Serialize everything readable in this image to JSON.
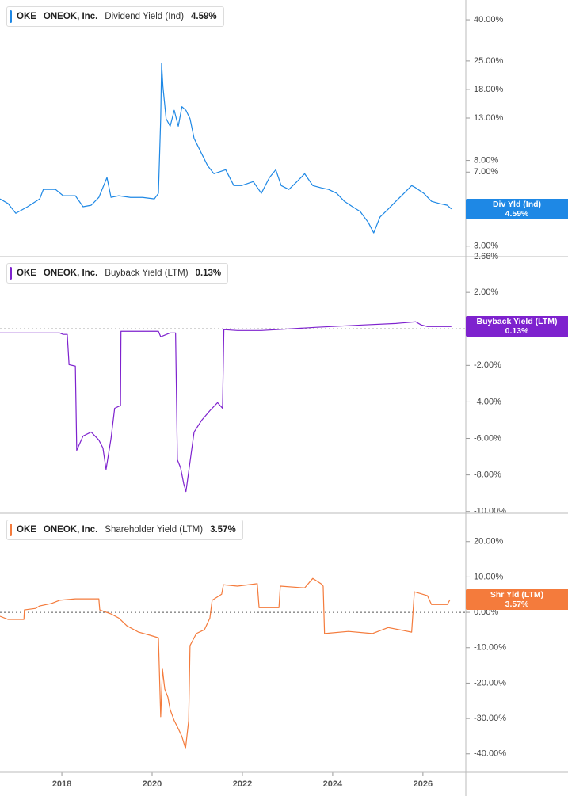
{
  "chart_data": [
    {
      "type": "line",
      "ticker": "OKE",
      "company": "ONEOK, Inc.",
      "badge": "Div Yld (Ind)",
      "current": {
        "value": 4.59,
        "label": "4.59%"
      },
      "log": true,
      "xlim": [
        2016.63,
        2026.95
      ],
      "ylim": [
        2.66,
        50.2
      ],
      "yticks": [
        {
          "value": 40,
          "label": "40.00%"
        },
        {
          "value": 25,
          "label": "25.00%"
        },
        {
          "value": 18,
          "label": "18.00%"
        },
        {
          "value": 13,
          "label": "13.00%"
        },
        {
          "value": 8,
          "label": "8.00%"
        },
        {
          "value": 7,
          "label": "7.00%"
        },
        {
          "value": 3,
          "label": "3.00%"
        },
        {
          "value": 2.66,
          "label": "2.66%"
        }
      ],
      "x": [
        2016.63,
        2016.81,
        2016.98,
        2017.24,
        2017.51,
        2017.59,
        2017.86,
        2018.03,
        2018.3,
        2018.47,
        2018.65,
        2018.82,
        2019.0,
        2019.09,
        2019.26,
        2019.52,
        2019.79,
        2020.05,
        2020.14,
        2020.19,
        2020.21,
        2020.24,
        2020.31,
        2020.4,
        2020.49,
        2020.58,
        2020.66,
        2020.75,
        2020.84,
        2020.93,
        2021.1,
        2021.23,
        2021.37,
        2021.63,
        2021.81,
        2021.98,
        2022.24,
        2022.42,
        2022.6,
        2022.74,
        2022.86,
        2023.03,
        2023.21,
        2023.38,
        2023.56,
        2023.74,
        2023.91,
        2024.09,
        2024.26,
        2024.44,
        2024.61,
        2024.79,
        2024.91,
        2025.05,
        2025.23,
        2025.4,
        2025.58,
        2025.75,
        2025.84,
        2026.02,
        2026.19,
        2026.37,
        2026.54,
        2026.63
      ],
      "series": [
        {
          "name": "Dividend Yield (Ind)",
          "color": "#1e88e5",
          "values": [
            5.15,
            4.88,
            4.37,
            4.71,
            5.15,
            5.74,
            5.74,
            5.34,
            5.34,
            4.71,
            4.79,
            5.24,
            6.58,
            5.24,
            5.34,
            5.24,
            5.24,
            5.15,
            5.49,
            12.9,
            24.3,
            18.6,
            12.9,
            11.83,
            14.2,
            11.83,
            14.8,
            14.2,
            12.9,
            10.3,
            8.62,
            7.53,
            6.87,
            7.19,
            6.0,
            6.0,
            6.28,
            5.49,
            6.58,
            7.19,
            6.0,
            5.74,
            6.28,
            6.87,
            6.0,
            5.85,
            5.74,
            5.49,
            5.01,
            4.71,
            4.46,
            3.93,
            3.49,
            4.19,
            4.58,
            5.01,
            5.49,
            6.0,
            5.85,
            5.49,
            5.01,
            4.88,
            4.79,
            4.59
          ]
        }
      ]
    },
    {
      "type": "line",
      "ticker": "OKE",
      "company": "ONEOK, Inc.",
      "badge": "Buyback Yield (LTM)",
      "current": {
        "value": 0.13,
        "label": "0.13%"
      },
      "reference_line": 0,
      "xlim": [
        2016.63,
        2026.95
      ],
      "ylim": [
        -10.1,
        3.96
      ],
      "yticks": [
        {
          "value": 2,
          "label": "2.00%"
        },
        {
          "value": -2,
          "label": "-2.00%"
        },
        {
          "value": -4,
          "label": "-4.00%"
        },
        {
          "value": -6,
          "label": "-6.00%"
        },
        {
          "value": -8,
          "label": "-8.00%"
        },
        {
          "value": -10,
          "label": "-10.00%"
        }
      ],
      "x": [
        2016.63,
        2017.51,
        2017.95,
        2018.03,
        2018.12,
        2018.16,
        2018.3,
        2018.33,
        2018.47,
        2018.65,
        2018.82,
        2018.91,
        2018.98,
        2019.09,
        2019.17,
        2019.3,
        2019.31,
        2019.61,
        2020.14,
        2020.19,
        2020.4,
        2020.52,
        2020.56,
        2020.63,
        2020.7,
        2020.75,
        2020.81,
        2020.93,
        2021.1,
        2021.28,
        2021.45,
        2021.56,
        2021.59,
        2021.89,
        2022.42,
        2023.65,
        2024.7,
        2025.4,
        2025.84,
        2025.96,
        2026.1,
        2026.63
      ],
      "series": [
        {
          "name": "Buyback Yield (LTM)",
          "color": "#7e22ce",
          "values": [
            -0.22,
            -0.22,
            -0.22,
            -0.3,
            -0.3,
            -1.96,
            -2.04,
            -6.65,
            -5.87,
            -5.65,
            -6.09,
            -6.52,
            -7.7,
            -6.0,
            -4.35,
            -4.2,
            -0.13,
            -0.13,
            -0.13,
            -0.43,
            -0.22,
            -0.22,
            -7.17,
            -7.6,
            -8.48,
            -8.91,
            -7.83,
            -5.65,
            -5.0,
            -4.48,
            -4.04,
            -4.35,
            -0.04,
            -0.09,
            -0.09,
            0.09,
            0.22,
            0.3,
            0.39,
            0.22,
            0.13,
            0.13
          ]
        }
      ]
    },
    {
      "type": "line",
      "ticker": "OKE",
      "company": "ONEOK, Inc.",
      "badge": "Shr Yld (LTM)",
      "current": {
        "value": 3.57,
        "label": "3.57%"
      },
      "reference_line": 0,
      "xlim": [
        2016.63,
        2026.95
      ],
      "ylim": [
        -45.2,
        28
      ],
      "yticks": [
        {
          "value": 20,
          "label": "20.00%"
        },
        {
          "value": 10,
          "label": "10.00%"
        },
        {
          "value": 0,
          "label": "0.00%"
        },
        {
          "value": -10,
          "label": "-10.00%"
        },
        {
          "value": -20,
          "label": "-20.00%"
        },
        {
          "value": -30,
          "label": "-30.00%"
        },
        {
          "value": -40,
          "label": "-40.00%"
        }
      ],
      "xticks": [
        2018,
        2020,
        2022,
        2024,
        2026
      ],
      "x": [
        2016.63,
        2016.81,
        2017.16,
        2017.17,
        2017.42,
        2017.51,
        2017.77,
        2017.95,
        2018.3,
        2018.82,
        2018.84,
        2019.09,
        2019.26,
        2019.44,
        2019.7,
        2019.96,
        2020.14,
        2020.19,
        2020.23,
        2020.28,
        2020.35,
        2020.4,
        2020.49,
        2020.58,
        2020.66,
        2020.74,
        2020.81,
        2020.84,
        2020.98,
        2021.16,
        2021.28,
        2021.33,
        2021.54,
        2021.58,
        2021.89,
        2022.33,
        2022.37,
        2022.81,
        2022.84,
        2023.38,
        2023.56,
        2023.74,
        2023.79,
        2023.82,
        2024.35,
        2024.88,
        2025.23,
        2025.75,
        2025.81,
        2026.1,
        2026.19,
        2026.54,
        2026.6
      ],
      "series": [
        {
          "name": "Shareholder Yield (LTM)",
          "color": "#f47b3c",
          "values": [
            -1.1,
            -2.0,
            -2.0,
            0.67,
            1.1,
            1.8,
            2.5,
            3.4,
            3.8,
            3.8,
            0.67,
            -0.45,
            -1.6,
            -3.8,
            -5.6,
            -6.5,
            -7.2,
            -29.5,
            -16.1,
            -21.7,
            -24,
            -27.5,
            -30.6,
            -32.9,
            -35.1,
            -38.5,
            -30.6,
            -9.4,
            -6.0,
            -4.9,
            -1.6,
            3.4,
            5.1,
            7.8,
            7.4,
            8.1,
            1.3,
            1.3,
            7.4,
            6.9,
            9.6,
            8.1,
            7.4,
            -6.0,
            -5.4,
            -6.0,
            -4.3,
            -5.6,
            5.8,
            4.7,
            2.2,
            2.2,
            3.57
          ]
        }
      ]
    }
  ]
}
